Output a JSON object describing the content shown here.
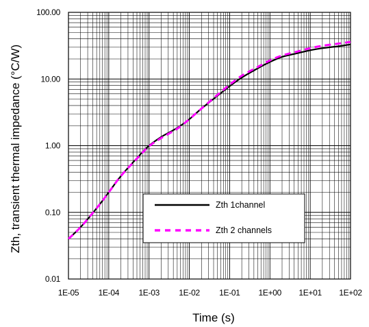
{
  "chart_data": {
    "type": "line",
    "xlabel": "Time (s)",
    "ylabel": "Zth, transient thermal impedance (°C/W)",
    "x_scale": "log",
    "y_scale": "log",
    "xlim": [
      1e-05,
      100
    ],
    "ylim": [
      0.01,
      100
    ],
    "x_tick_labels": [
      "1E-05",
      "1E-04",
      "1E-03",
      "1E-02",
      "1E-01",
      "1E+00",
      "1E+01",
      "1E+02"
    ],
    "y_tick_labels": [
      "100.00",
      "10.00",
      "1.00",
      "0.10",
      "0.01"
    ],
    "grid": true,
    "legend_position": "lower-right",
    "series": [
      {
        "name": "Zth 1channel",
        "color": "#000000",
        "style": "solid",
        "x": [
          1e-05,
          2e-05,
          5e-05,
          0.0001,
          0.0002,
          0.0005,
          0.001,
          0.002,
          0.005,
          0.01,
          0.02,
          0.05,
          0.1,
          0.2,
          0.5,
          1,
          2,
          5,
          10,
          20,
          50,
          100
        ],
        "y": [
          0.04,
          0.06,
          0.115,
          0.2,
          0.35,
          0.65,
          1.0,
          1.35,
          1.85,
          2.5,
          3.6,
          5.6,
          7.8,
          10.5,
          14.5,
          18,
          21.5,
          24.5,
          27,
          29,
          31,
          33
        ]
      },
      {
        "name": "Zth 2 channels",
        "color": "#ff00ff",
        "style": "dashed",
        "x": [
          1e-05,
          2e-05,
          5e-05,
          0.0001,
          0.0002,
          0.0005,
          0.001,
          0.002,
          0.005,
          0.01,
          0.02,
          0.05,
          0.1,
          0.2,
          0.5,
          1,
          2,
          5,
          10,
          20,
          50,
          100
        ],
        "y": [
          0.04,
          0.06,
          0.115,
          0.2,
          0.35,
          0.64,
          0.98,
          1.3,
          1.8,
          2.5,
          3.6,
          5.8,
          8.2,
          11.2,
          15.2,
          19,
          22.5,
          26,
          29,
          31.5,
          34,
          36
        ]
      }
    ]
  }
}
